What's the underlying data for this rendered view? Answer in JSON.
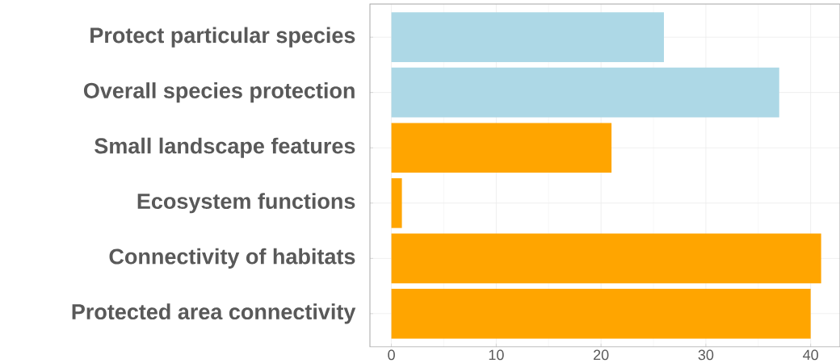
{
  "chart_data": {
    "type": "bar",
    "orientation": "horizontal",
    "categories": [
      "Protect particular species",
      "Overall species protection",
      "Small landscape features",
      "Ecosystem functions",
      "Connectivity of habitats",
      "Protected area connectivity"
    ],
    "values": [
      26,
      37,
      21,
      1,
      41,
      40
    ],
    "colors": [
      "#add8e6",
      "#add8e6",
      "#ffa500",
      "#ffa500",
      "#ffa500",
      "#ffa500"
    ],
    "xlim": [
      -2.05,
      42.8
    ],
    "xticks": [
      0,
      10,
      20,
      30,
      40
    ],
    "grid": true
  }
}
